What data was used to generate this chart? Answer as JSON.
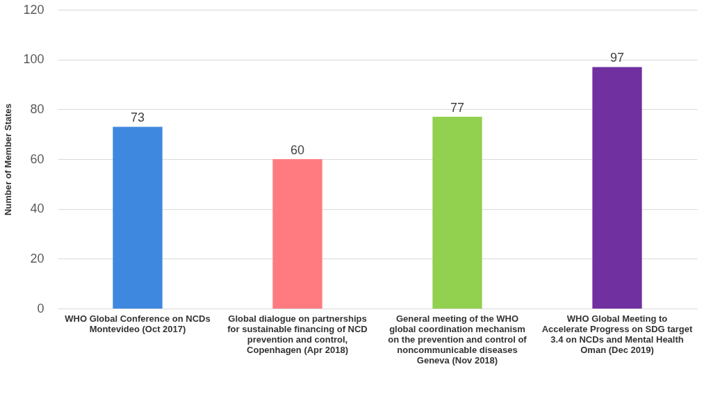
{
  "chart_data": {
    "type": "bar",
    "ylabel": "Number of Member States",
    "categories": [
      "WHO Global Conference on NCDs\nMontevideo (Oct 2017)",
      "Global dialogue on partnerships\nfor sustainable financing of NCD\nprevention and control,\nCopenhagen (Apr 2018)",
      "General meeting of the WHO\nglobal coordination mechanism\non the prevention and control of\nnoncommunicable diseases\nGeneva (Nov 2018)",
      "WHO Global Meeting to\nAccelerate Progress on SDG target\n3.4 on NCDs and Mental Health\nOman (Dec 2019)"
    ],
    "values": [
      73,
      60,
      77,
      97
    ],
    "colors": [
      "#3f88e0",
      "#ff7b80",
      "#92d050",
      "#7030a0"
    ],
    "ylim": [
      0,
      120
    ],
    "yticks": [
      0,
      20,
      40,
      60,
      80,
      100,
      120
    ],
    "grid": "y",
    "data_labels": true,
    "legend": false
  }
}
